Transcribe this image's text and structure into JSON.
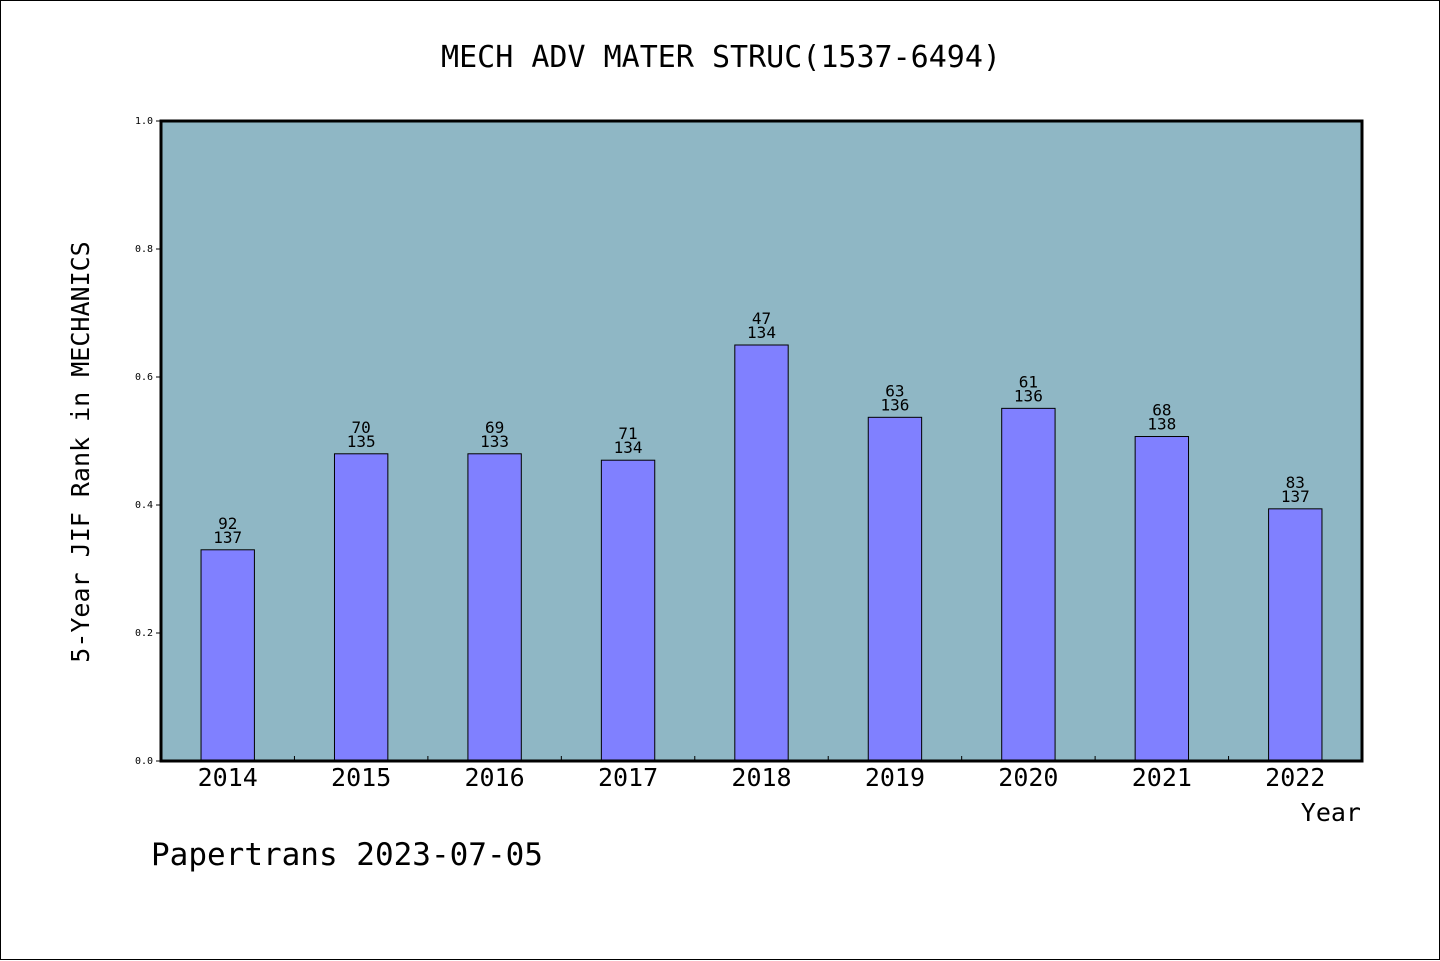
{
  "chart_data": {
    "type": "bar",
    "title": "MECH ADV MATER STRUC(1537-6494)",
    "xlabel": "Year",
    "ylabel": "5-Year JIF Rank in MECHANICS",
    "ylim": [
      0,
      1.0
    ],
    "yticks": [
      "0.0",
      "0.2",
      "0.4",
      "0.6",
      "0.8",
      "1.0"
    ],
    "categories": [
      "2014",
      "2015",
      "2016",
      "2017",
      "2018",
      "2019",
      "2020",
      "2021",
      "2022"
    ],
    "values": [
      0.33,
      0.48,
      0.48,
      0.47,
      0.65,
      0.537,
      0.551,
      0.507,
      0.394
    ],
    "labels_top": [
      "92",
      "70",
      "69",
      "71",
      "47",
      "63",
      "61",
      "68",
      "83"
    ],
    "labels_bottom": [
      "137",
      "135",
      "133",
      "134",
      "134",
      "136",
      "136",
      "138",
      "137"
    ],
    "grid": false,
    "colors": {
      "plot_bg": "#8fb7c5",
      "bar": "#8080ff",
      "bar_edge": "#000000"
    }
  },
  "footer": "Papertrans 2023-07-05"
}
